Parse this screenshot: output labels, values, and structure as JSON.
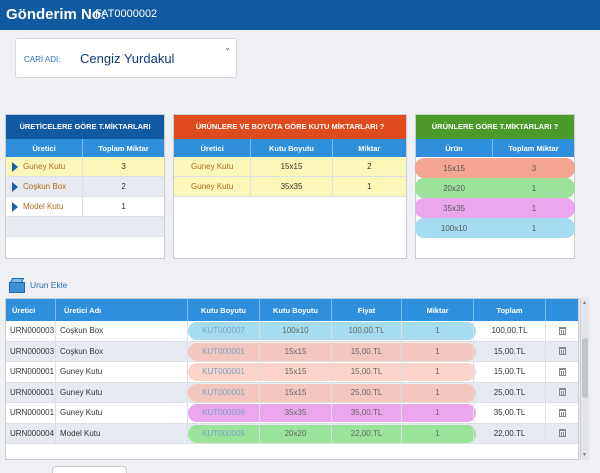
{
  "header": {
    "title": "Gönderim No:",
    "number": "FAT0000002"
  },
  "cari": {
    "label": "CARİ ADI:",
    "value": "Cengiz Yurdakul"
  },
  "panel1": {
    "title": "ÜRETİCELERE GÖRE T.MİKTARLARI",
    "cols": [
      "Üretici",
      "Toplam Miktar"
    ],
    "rows": [
      {
        "name": "Guney Kutu",
        "qty": "3"
      },
      {
        "name": "Coşkun Box",
        "qty": "2"
      },
      {
        "name": "Model Kutu",
        "qty": "1"
      }
    ]
  },
  "panel2": {
    "title": "ÜRÜNLERE VE BOYUTA GÖRE KUTU MİKTARLARI ?",
    "cols": [
      "Üretici",
      "Kutu Boyutu",
      "Miktar"
    ],
    "rows": [
      {
        "name": "Guney Kutu",
        "size": "15x15",
        "qty": "2"
      },
      {
        "name": "Guney Kutu",
        "size": "35x35",
        "qty": "1"
      }
    ]
  },
  "panel3": {
    "title": "ÜRÜNLERE GÖRE T.MİKTARLARI ?",
    "cols": [
      "Ürün",
      "Toplam Miktar"
    ],
    "rows": [
      {
        "size": "15x15",
        "qty": "3",
        "color": "#f7a593"
      },
      {
        "size": "20x20",
        "qty": "1",
        "color": "#9be39b"
      },
      {
        "size": "35x35",
        "qty": "1",
        "color": "#eba7ee"
      },
      {
        "size": "100x10",
        "qty": "1",
        "color": "#a5dcf2"
      }
    ]
  },
  "add_label": "Urun Ekle",
  "table": {
    "cols": [
      "Üretici",
      "Üretici Adı",
      "Kutu Boyutu",
      "Kutu Boyutu",
      "Fiyat",
      "Miktar",
      "Toplam",
      ""
    ],
    "rows": [
      {
        "code": "URN000003",
        "name": "Coşkun Box",
        "kut": "KUT000007",
        "size": "100x10",
        "price": "100,00.TL",
        "qty": "1",
        "total": "100,00.TL",
        "color": "#a5dcf2"
      },
      {
        "code": "URN000003",
        "name": "Coşkun Box",
        "kut": "KUT000001",
        "size": "15x15",
        "price": "15,00.TL",
        "qty": "1",
        "total": "15,00.TL",
        "color": "#f4c6c0"
      },
      {
        "code": "URN000001",
        "name": "Guney Kutu",
        "kut": "KUT000001",
        "size": "15x15",
        "price": "15,00.TL",
        "qty": "1",
        "total": "15,00.TL",
        "color": "#fbd3cb"
      },
      {
        "code": "URN000001",
        "name": "Guney Kutu",
        "kut": "KUT000001",
        "size": "15x15",
        "price": "25,00.TL",
        "qty": "1",
        "total": "25,00.TL",
        "color": "#f4c6c0"
      },
      {
        "code": "URN000001",
        "name": "Guney Kutu",
        "kut": "KUT000006",
        "size": "35x35",
        "price": "35,00.TL",
        "qty": "1",
        "total": "35,00.TL",
        "color": "#eba7ee"
      },
      {
        "code": "URN000004",
        "name": "Model Kutu",
        "kut": "KUT000005",
        "size": "20x20",
        "price": "22,00.TL",
        "qty": "1",
        "total": "22,00.TL",
        "color": "#9be39b"
      }
    ]
  },
  "colors": {
    "header_bg": "#0f5aa0",
    "panel1_head": "#0f5aa0",
    "panel2_head": "#e04a1f",
    "panel3_head": "#4c9a2a",
    "col_head": "#2f8fdc"
  }
}
